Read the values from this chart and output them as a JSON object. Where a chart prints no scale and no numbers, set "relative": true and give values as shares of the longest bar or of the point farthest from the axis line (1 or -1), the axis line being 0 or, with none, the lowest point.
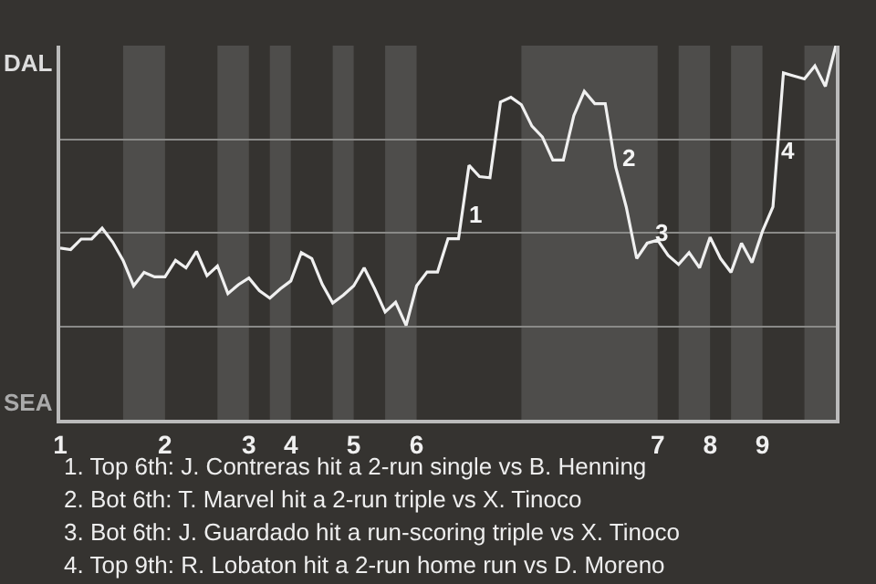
{
  "chart_data": {
    "type": "line",
    "relative": true,
    "categories": [
      "1",
      null,
      null,
      null,
      null,
      null,
      null,
      null,
      null,
      null,
      "2",
      null,
      null,
      null,
      null,
      null,
      null,
      null,
      "3",
      null,
      null,
      null,
      "4",
      null,
      null,
      null,
      null,
      null,
      "5",
      null,
      null,
      null,
      null,
      null,
      "6",
      null,
      null,
      null,
      null,
      null,
      null,
      null,
      null,
      null,
      null,
      null,
      null,
      null,
      null,
      null,
      null,
      null,
      null,
      null,
      null,
      null,
      null,
      "7",
      null,
      null,
      null,
      null,
      "8",
      null,
      null,
      null,
      null,
      "9",
      null,
      null,
      null,
      null,
      null,
      null,
      null
    ],
    "series": [
      {
        "color": "#f0f0f0",
        "values": [
          0.459,
          0.455,
          0.483,
          0.483,
          0.512,
          0.475,
          0.426,
          0.358,
          0.394,
          0.382,
          0.382,
          0.426,
          0.406,
          0.45,
          0.385,
          0.411,
          0.337,
          0.361,
          0.379,
          0.345,
          0.325,
          0.35,
          0.371,
          0.447,
          0.431,
          0.362,
          0.312,
          0.333,
          0.358,
          0.406,
          0.35,
          0.288,
          0.314,
          0.252,
          0.358,
          0.395,
          0.395,
          0.484,
          0.484,
          0.68,
          0.65,
          0.647,
          0.849,
          0.862,
          0.842,
          0.785,
          0.756,
          0.694,
          0.694,
          0.813,
          0.878,
          0.845,
          0.845,
          0.675,
          0.569,
          0.431,
          0.472,
          0.48,
          0.439,
          0.415,
          0.447,
          0.406,
          0.488,
          0.431,
          0.394,
          0.472,
          0.42,
          0.504,
          0.569,
          0.927,
          0.919,
          0.911,
          0.946,
          0.891,
          1
        ],
        "name": null
      }
    ],
    "grid": "y",
    "marker": "none",
    "line_style": "solid",
    "annotations": [
      "DAL",
      "SEA",
      "1",
      "2",
      "3",
      "4",
      "1. Top 6th: J. Contreras hit a 2-run single vs B. Henning",
      "2. Bot 6th: T. Marvel hit a 2-run triple vs X. Tinoco",
      "3. Bot 6th: J. Guardado hit a run-scoring triple vs X. Tinoco",
      "4. Top 9th: R. Lobaton hit a 2-run home run vs D. Moreno"
    ]
  }
}
